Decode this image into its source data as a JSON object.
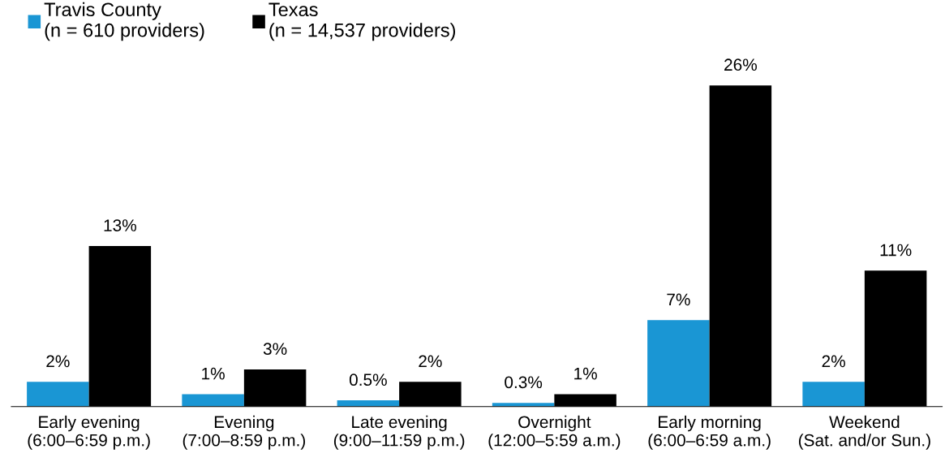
{
  "chart_data": {
    "type": "bar",
    "categories": [
      "Early evening\n(6:00–6:59 p.m.)",
      "Evening\n(7:00–8:59 p.m.)",
      "Late evening\n(9:00–11:59 p.m.)",
      "Overnight\n(12:00–5:59 a.m.)",
      "Early morning\n(6:00–6:59 a.m.)",
      "Weekend\n(Sat. and/or Sun.)"
    ],
    "series": [
      {
        "name": "Travis County\n(n = 610 providers)",
        "color": "#1a96d4",
        "values": [
          2,
          1,
          0.5,
          0.3,
          7,
          2
        ],
        "value_labels": [
          "2%",
          "1%",
          "0.5%",
          "0.3%",
          "7%",
          "2%"
        ]
      },
      {
        "name": "Texas\n(n = 14,537 providers)",
        "color": "#000000",
        "values": [
          13,
          3,
          2,
          1,
          26,
          11
        ],
        "value_labels": [
          "13%",
          "3%",
          "2%",
          "1%",
          "26%",
          "11%"
        ]
      }
    ],
    "tick_labels": "x",
    "legend": "top left",
    "grid": false
  }
}
